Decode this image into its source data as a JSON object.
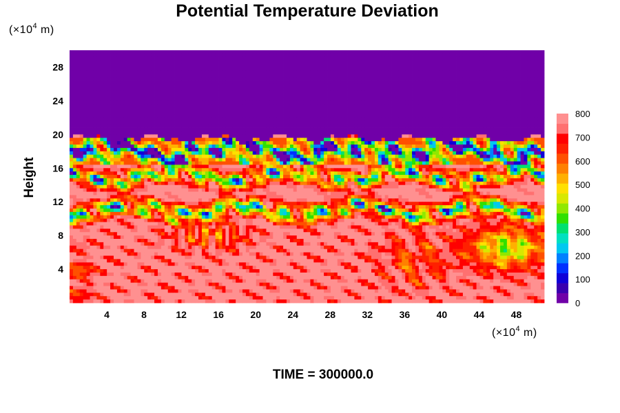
{
  "chart_data": {
    "type": "heatmap",
    "title": "Potential Temperature Deviation",
    "ylabel": "Height",
    "xlabel": "",
    "x_unit_prefix": "(×10",
    "x_unit_exp": "4",
    "x_unit_suffix": " m)",
    "y_unit_prefix": "(×10",
    "y_unit_exp": "4",
    "y_unit_suffix": " m)",
    "footer": "TIME = 300000.0",
    "xlim": [
      0,
      51
    ],
    "ylim": [
      0,
      30
    ],
    "x_ticks": [
      "4",
      "8",
      "12",
      "16",
      "20",
      "24",
      "28",
      "32",
      "36",
      "40",
      "44",
      "48"
    ],
    "y_ticks": [
      "4",
      "8",
      "12",
      "16",
      "20",
      "24",
      "28"
    ],
    "colorbar": {
      "min": 0,
      "max": 800,
      "ticks": [
        "0",
        "100",
        "200",
        "300",
        "400",
        "500",
        "600",
        "700",
        "800"
      ],
      "colors": [
        "#7000a8",
        "#3a00b0",
        "#1000d8",
        "#0030ff",
        "#0080ff",
        "#00c8f0",
        "#00e0c0",
        "#00e070",
        "#30e000",
        "#90e800",
        "#d8e800",
        "#ffe000",
        "#ffb000",
        "#ff8000",
        "#ff5000",
        "#ff2000",
        "#ff0000",
        "#ff7070",
        "#ff9090"
      ]
    },
    "field": {
      "upper_region_value": 0,
      "upper_region_above_height": 19.5,
      "background_value": 780,
      "bands_around_heights": [
        18,
        15,
        11
      ]
    }
  }
}
